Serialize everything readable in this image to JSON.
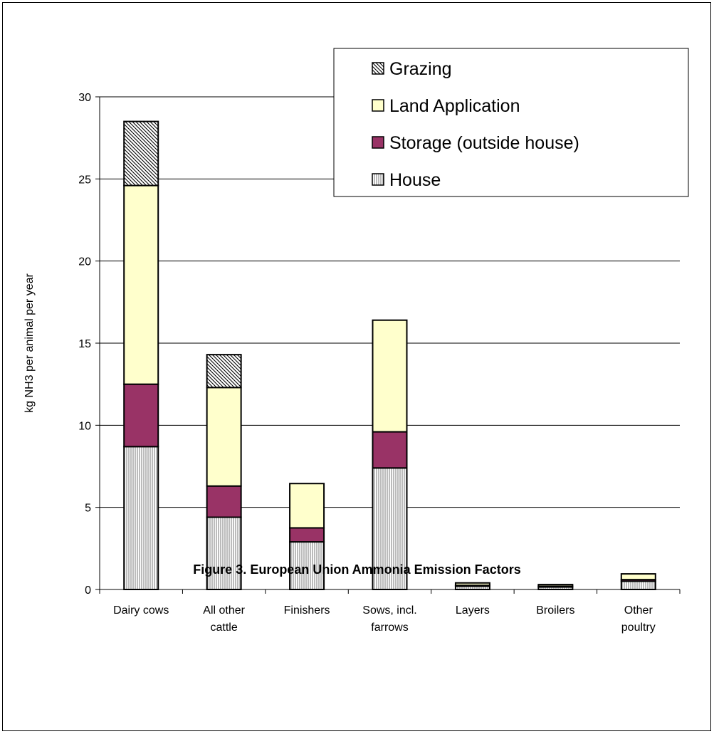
{
  "chart_data": {
    "type": "bar",
    "stacked": true,
    "title": "Figure 3. European Union Ammonia Emission Factors",
    "xlabel": "",
    "ylabel": "kg NH3 per animal per year",
    "ylim": [
      0,
      30
    ],
    "yticks": [
      "0",
      "5",
      "10",
      "15",
      "20",
      "25",
      "30"
    ],
    "grid": true,
    "legend_position": "top-right",
    "categories": [
      [
        "Dairy cows"
      ],
      [
        "All other",
        "cattle"
      ],
      [
        "Finishers"
      ],
      [
        "Sows, incl.",
        "farrows"
      ],
      [
        "Layers"
      ],
      [
        "Broilers"
      ],
      [
        "Other",
        "poultry"
      ]
    ],
    "series": [
      {
        "name": "House",
        "color": "#ffffff",
        "pattern": "vertical-lines",
        "values": [
          8.7,
          4.4,
          2.9,
          7.4,
          0.2,
          0.15,
          0.5
        ]
      },
      {
        "name": "Storage (outside house)",
        "color": "#993366",
        "pattern": "solid",
        "values": [
          3.8,
          1.9,
          0.85,
          2.2,
          0.05,
          0.05,
          0.1
        ]
      },
      {
        "name": "Land Application",
        "color": "#ffffcc",
        "pattern": "solid",
        "values": [
          12.1,
          6.0,
          2.7,
          6.8,
          0.15,
          0.1,
          0.35
        ]
      },
      {
        "name": "Grazing",
        "color": "#ffffff",
        "pattern": "diagonal-hatch",
        "values": [
          3.9,
          2.0,
          0,
          0,
          0,
          0,
          0
        ]
      }
    ],
    "legend_order": [
      "Grazing",
      "Land Application",
      "Storage (outside house)",
      "House"
    ]
  }
}
